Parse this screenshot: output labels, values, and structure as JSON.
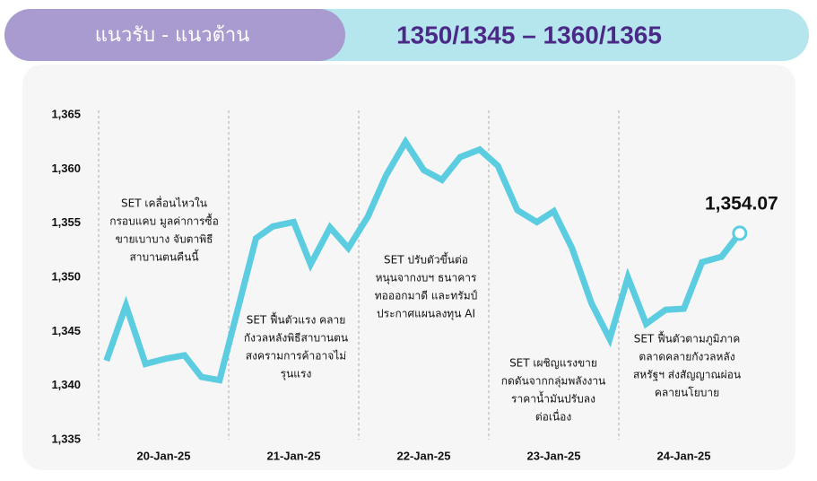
{
  "header": {
    "title": "แนวรับ - แนวต้าน",
    "range": "1350/1345 – 1360/1365"
  },
  "chart_data": {
    "type": "line",
    "categories": [
      "20-Jan-25",
      "21-Jan-25",
      "22-Jan-25",
      "23-Jan-25",
      "24-Jan-25"
    ],
    "x": [
      0.06,
      0.21,
      0.36,
      0.52,
      0.66,
      0.79,
      0.93,
      1.21,
      1.34,
      1.5,
      1.63,
      1.78,
      1.92,
      2.07,
      2.21,
      2.36,
      2.5,
      2.64,
      2.78,
      2.93,
      3.07,
      3.22,
      3.37,
      3.5,
      3.64,
      3.79,
      3.93,
      4.07,
      4.21,
      4.36,
      4.5,
      4.64,
      4.79,
      4.93
    ],
    "xlim": [
      0,
      5
    ],
    "series": [
      {
        "color": "#5ccde0",
        "values": [
          1342.3,
          1347.4,
          1342.0,
          1342.5,
          1342.8,
          1340.8,
          1340.5,
          1353.6,
          1354.7,
          1355.1,
          1351.2,
          1354.6,
          1352.7,
          1355.6,
          1359.4,
          1362.5,
          1359.9,
          1359.0,
          1361.1,
          1361.8,
          1360.3,
          1356.2,
          1355.1,
          1356.1,
          1352.7,
          1347.6,
          1344.3,
          1350.0,
          1345.7,
          1347.0,
          1347.1,
          1351.4,
          1351.9,
          1354.07
        ],
        "value_labels": [
          null,
          null,
          null,
          null,
          null,
          null,
          null,
          null,
          null,
          null,
          null,
          null,
          null,
          null,
          null,
          null,
          null,
          null,
          null,
          null,
          null,
          null,
          null,
          null,
          null,
          null,
          null,
          null,
          null,
          null,
          null,
          null,
          null,
          "1,354.07"
        ]
      }
    ],
    "ylim": [
      1335,
      1365
    ],
    "yticks": [
      {
        "value": 1335,
        "label": "1,335"
      },
      {
        "value": 1340,
        "label": "1,340"
      },
      {
        "value": 1345,
        "label": "1,345"
      },
      {
        "value": 1350,
        "label": "1,350"
      },
      {
        "value": 1355,
        "label": "1,355"
      },
      {
        "value": 1360,
        "label": "1,360"
      },
      {
        "value": 1365,
        "label": "1,365"
      }
    ],
    "annotations": [
      [
        "SET เคลื่อนไหวใน",
        "กรอบแคบ มูลค่าการซื้อ",
        "ขายเบาบาง จับตาพิธี",
        "สาบานตนคืนนี้"
      ],
      [
        "SET ฟื้นตัวแรง คลาย",
        "กังวลหลังพิธีสาบานตน",
        "สงครามการค้าอาจไม่",
        "รุนแรง"
      ],
      [
        "SET ปรับตัวขึ้นต่อ",
        "หนุนจากงบฯ ธนาคาร",
        "ทอออกมาดี และทรัมป์",
        "ประกาศแผนลงทุน AI"
      ],
      [
        "SET เผชิญแรงขาย",
        "กดดันจากกลุ่มพลังงาน",
        "ราคาน้ำมันปรับลง",
        "ต่อเนื่อง"
      ],
      [
        "SET ฟื้นตัวตามภูมิภาค",
        "ตลาดคลายกังวลหลัง",
        "สหรัฐฯ ส่งสัญญาณผ่อน",
        "คลายนโยบาย"
      ]
    ]
  }
}
